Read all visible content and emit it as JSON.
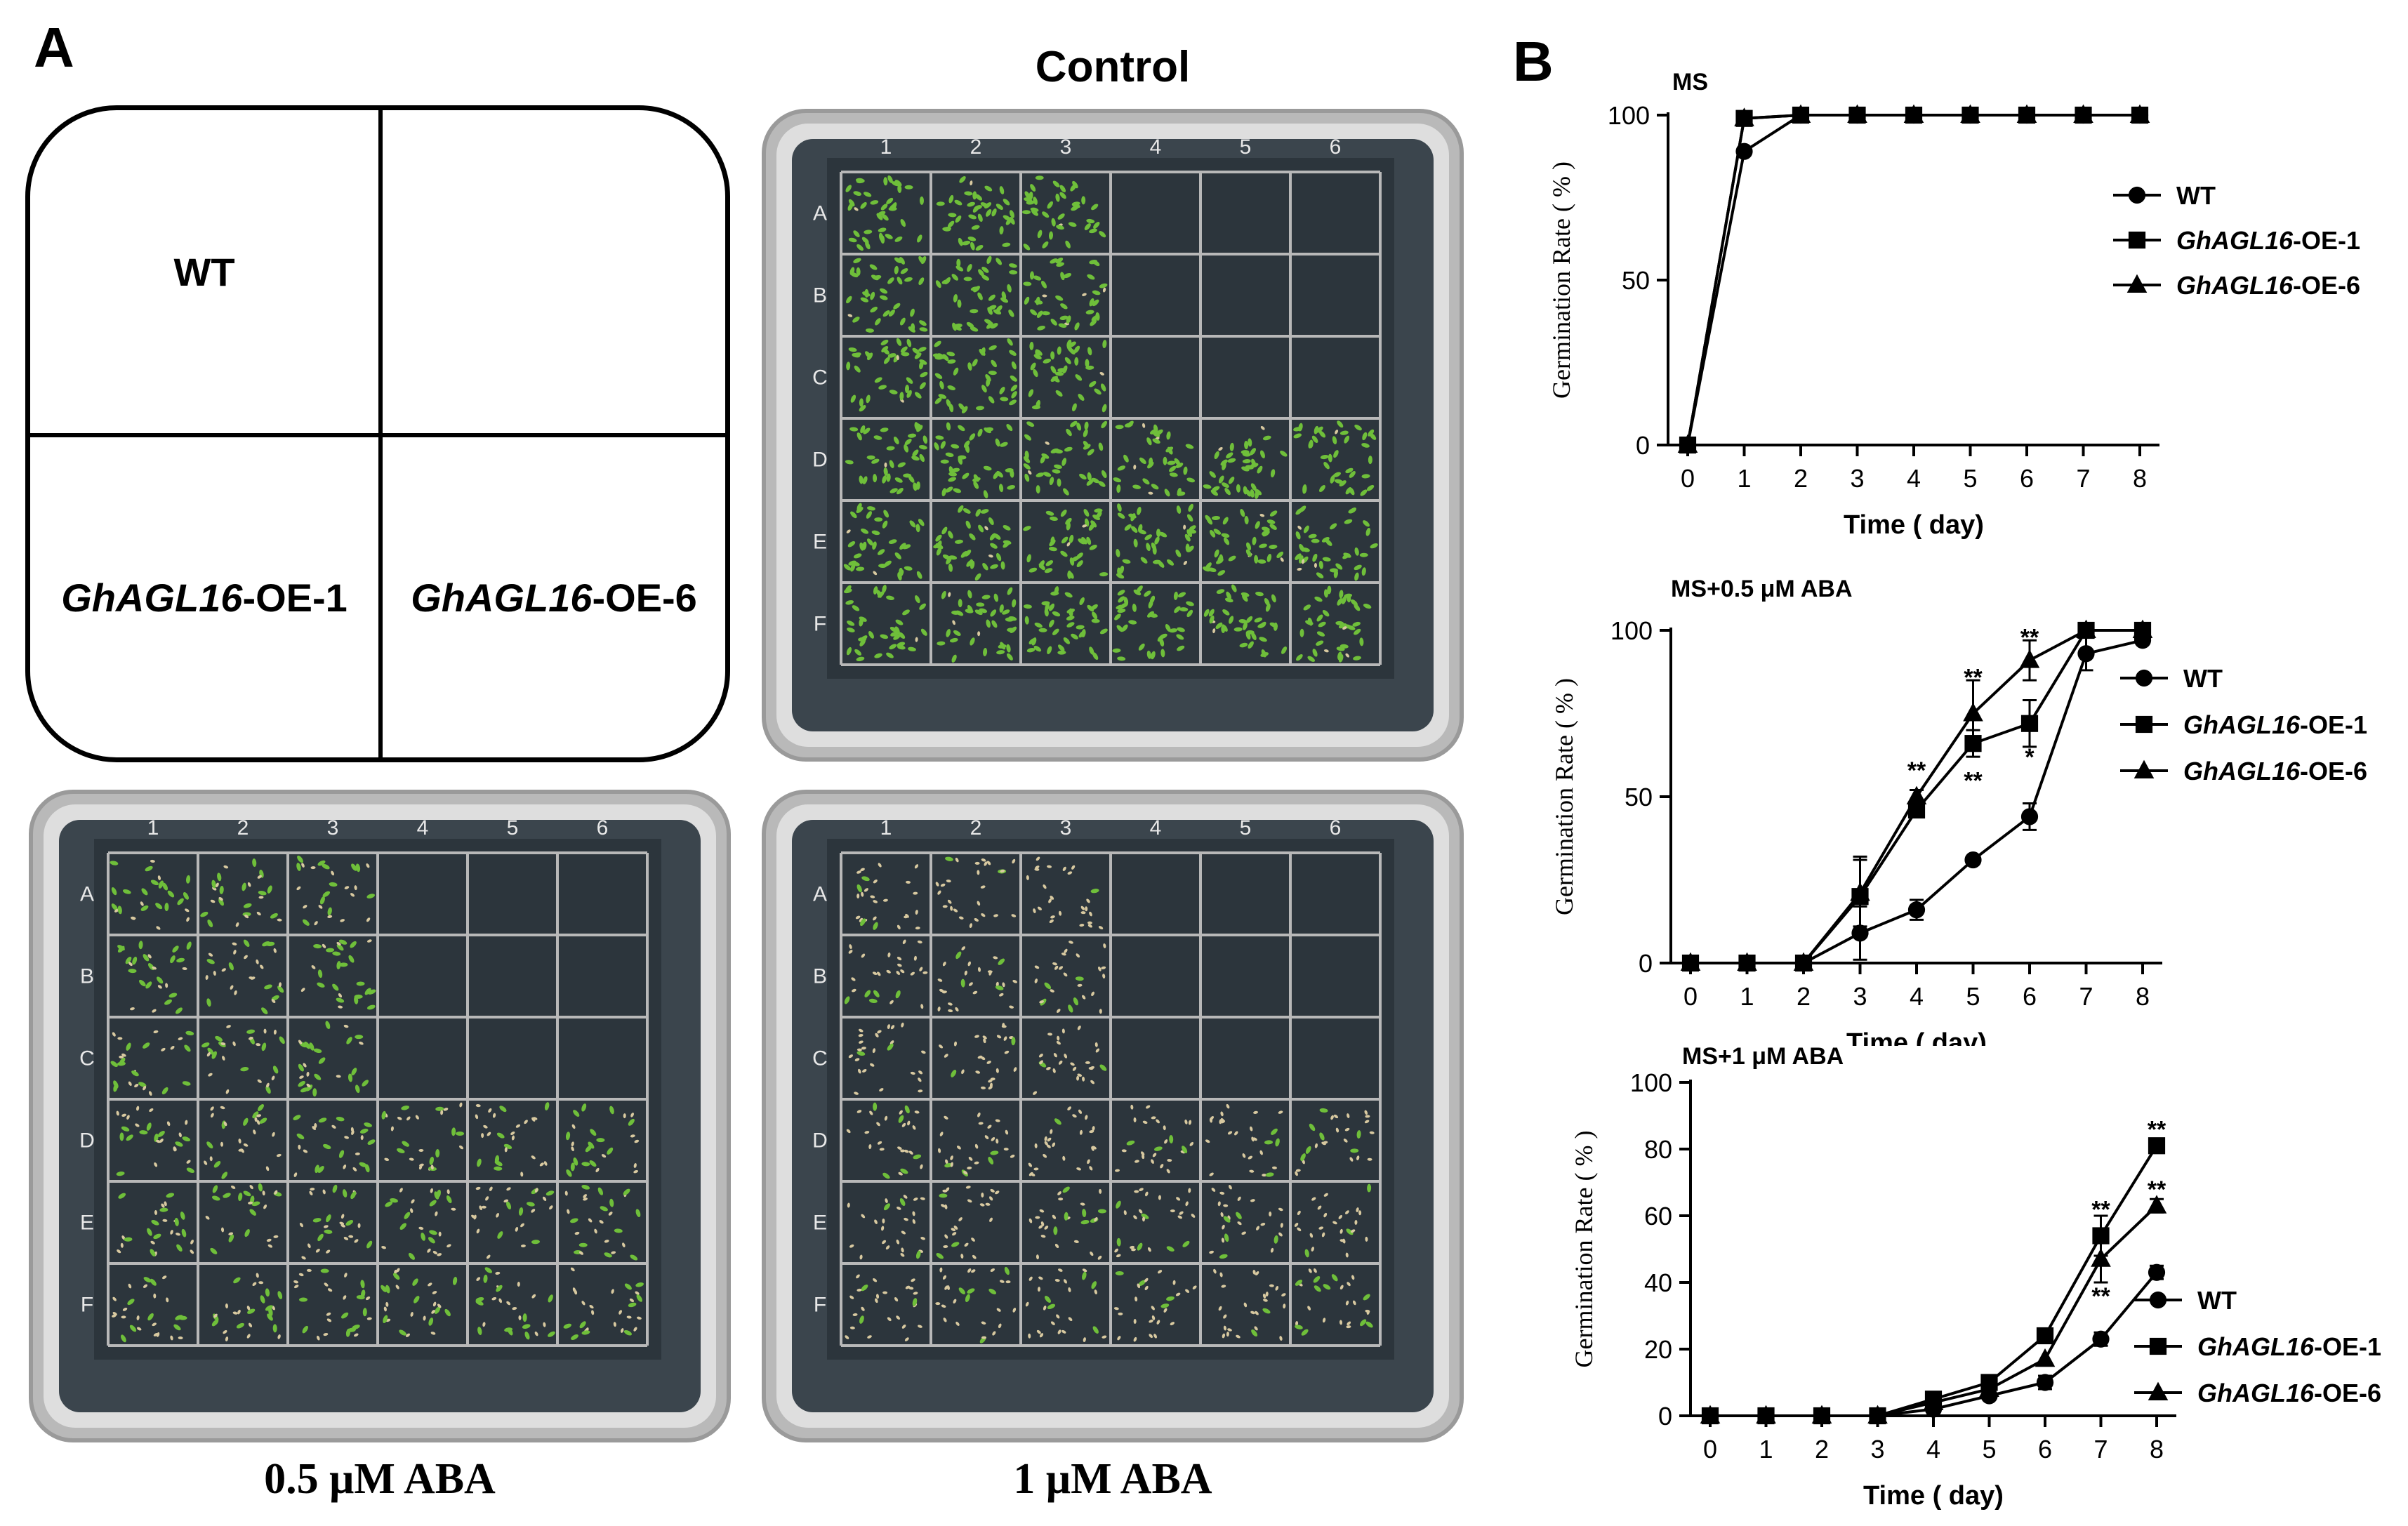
{
  "panel_a": {
    "letter": "A",
    "layout": {
      "wt_label": "WT",
      "oe1_gene": "GhAGL16",
      "oe1_suffix": "-OE-1",
      "oe6_gene": "GhAGL16",
      "oe6_suffix": "-OE-6"
    },
    "plates": {
      "control_title": "Control",
      "aba05_caption": "0.5 μM ABA",
      "aba1_caption": "1 μM ABA",
      "col_labels": [
        "1",
        "2",
        "3",
        "4",
        "5",
        "6"
      ],
      "row_labels": [
        "A",
        "B",
        "C",
        "D",
        "E",
        "F"
      ]
    }
  },
  "panel_b": {
    "letter": "B"
  },
  "colors": {
    "seedling_green": "#6fbf3a",
    "agar": "#2f3a43",
    "plate_rim": "#c8c8c8",
    "line": "#000000"
  },
  "chart_data": [
    {
      "type": "line",
      "title": "MS",
      "xlabel": "Time ( day)",
      "ylabel": "Germination Rate ( % )",
      "categories": [
        0,
        1,
        2,
        3,
        4,
        5,
        6,
        7,
        8
      ],
      "xlim": [
        0,
        8
      ],
      "ylim": [
        0,
        100
      ],
      "yticks": [
        0,
        50,
        100
      ],
      "series": [
        {
          "name": "WT",
          "gene": "",
          "suffix": "WT",
          "marker": "circle",
          "values": [
            0,
            89,
            100,
            100,
            100,
            100,
            100,
            100,
            100
          ]
        },
        {
          "name": "GhAGL16-OE-1",
          "gene": "GhAGL16",
          "suffix": "-OE-1",
          "marker": "square",
          "values": [
            0,
            99,
            100,
            100,
            100,
            100,
            100,
            100,
            100
          ]
        },
        {
          "name": "GhAGL16-OE-6",
          "gene": "GhAGL16",
          "suffix": "-OE-6",
          "marker": "triangle",
          "values": [
            0,
            99,
            100,
            100,
            100,
            100,
            100,
            100,
            100
          ]
        }
      ],
      "annotations": []
    },
    {
      "type": "line",
      "title": "MS+0.5 μM ABA",
      "xlabel": "Time ( day)",
      "ylabel": "Germination Rate ( % )",
      "categories": [
        0,
        1,
        2,
        3,
        4,
        5,
        6,
        7,
        8
      ],
      "xlim": [
        0,
        8
      ],
      "ylim": [
        0,
        100
      ],
      "yticks": [
        0,
        50,
        100
      ],
      "series": [
        {
          "name": "WT",
          "gene": "",
          "suffix": "WT",
          "marker": "circle",
          "values": [
            0,
            0,
            0,
            9,
            16,
            31,
            44,
            93,
            97
          ],
          "errors": [
            0,
            0,
            0,
            8,
            3,
            0,
            4,
            5,
            0
          ]
        },
        {
          "name": "GhAGL16-OE-1",
          "gene": "GhAGL16",
          "suffix": "-OE-1",
          "marker": "square",
          "values": [
            0,
            0,
            0,
            20,
            46,
            66,
            72,
            100,
            100
          ],
          "errors": [
            0,
            0,
            0,
            12,
            2,
            4,
            7,
            0,
            0
          ]
        },
        {
          "name": "GhAGL16-OE-6",
          "gene": "GhAGL16",
          "suffix": "-OE-6",
          "marker": "triangle",
          "values": [
            0,
            0,
            0,
            21,
            50,
            75,
            91,
            100,
            100
          ],
          "errors": [
            0,
            0,
            0,
            10,
            2,
            10,
            6,
            0,
            0
          ]
        }
      ],
      "annotations": [
        {
          "text": "**",
          "x": 4,
          "y": 58
        },
        {
          "text": "**",
          "x": 5,
          "y": 86
        },
        {
          "text": "**",
          "x": 5,
          "y": 55
        },
        {
          "text": "**",
          "x": 6,
          "y": 98
        },
        {
          "text": "*",
          "x": 6,
          "y": 62
        }
      ]
    },
    {
      "type": "line",
      "title": "MS+1 μM ABA",
      "xlabel": "Time ( day)",
      "ylabel": "Germination Rate ( % )",
      "categories": [
        0,
        1,
        2,
        3,
        4,
        5,
        6,
        7,
        8
      ],
      "xlim": [
        0,
        8
      ],
      "ylim": [
        0,
        100
      ],
      "yticks": [
        0,
        20,
        40,
        60,
        80,
        100
      ],
      "series": [
        {
          "name": "WT",
          "gene": "",
          "suffix": "WT",
          "marker": "circle",
          "values": [
            0,
            0,
            0,
            0,
            2,
            6,
            10,
            23,
            43
          ],
          "errors": [
            0,
            0,
            0,
            0,
            0,
            0,
            2,
            2,
            2
          ]
        },
        {
          "name": "GhAGL16-OE-1",
          "gene": "GhAGL16",
          "suffix": "-OE-1",
          "marker": "square",
          "values": [
            0,
            0,
            0,
            0,
            5,
            10,
            24,
            54,
            81
          ],
          "errors": [
            0,
            0,
            0,
            0,
            0,
            0,
            0,
            6,
            2
          ]
        },
        {
          "name": "GhAGL16-OE-6",
          "gene": "GhAGL16",
          "suffix": "-OE-6",
          "marker": "triangle",
          "values": [
            0,
            0,
            0,
            0,
            4,
            8,
            17,
            47,
            63
          ],
          "errors": [
            0,
            0,
            0,
            0,
            0,
            0,
            0,
            7,
            2
          ]
        }
      ],
      "annotations": [
        {
          "text": "**",
          "x": 7,
          "y": 62
        },
        {
          "text": "**",
          "x": 7,
          "y": 36
        },
        {
          "text": "**",
          "x": 8,
          "y": 86
        },
        {
          "text": "**",
          "x": 8,
          "y": 68
        }
      ]
    }
  ]
}
